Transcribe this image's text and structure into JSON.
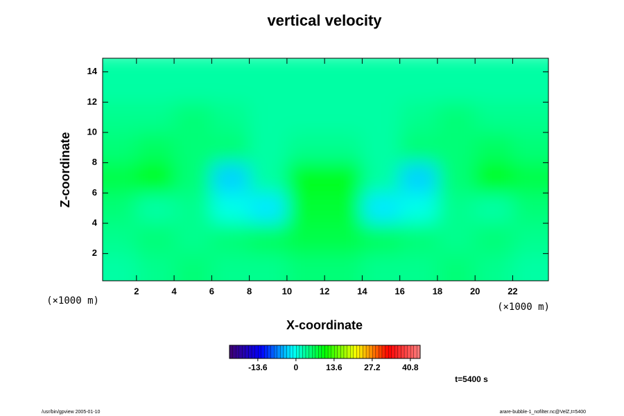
{
  "chart_data": {
    "type": "contour",
    "title": "vertical velocity",
    "x_label": "X-coordinate",
    "y_label": "Z-coordinate",
    "x_unit": "(×1000 m)",
    "y_unit": "(×1000 m)",
    "time_label": "t=5400 s",
    "footer_left": "/usr/bin/gpview 2005-01-10",
    "footer_right": "arare-bubble-1_nofilter.nc@VelZ,t=5400",
    "x": [
      1,
      3,
      5,
      7,
      9,
      11,
      13,
      15,
      17,
      19,
      21,
      23
    ],
    "z": [
      1,
      3,
      5,
      7,
      9,
      11,
      13
    ],
    "values": [
      [
        3,
        4,
        5,
        4,
        4,
        5,
        5,
        4,
        4,
        5,
        4,
        3
      ],
      [
        4,
        5,
        4,
        5,
        6,
        7,
        7,
        6,
        5,
        4,
        5,
        4
      ],
      [
        5,
        3,
        4,
        0,
        -2,
        8,
        8,
        -2,
        0,
        4,
        3,
        5
      ],
      [
        7,
        9,
        5,
        -3,
        3,
        9,
        9,
        3,
        -3,
        5,
        9,
        7
      ],
      [
        5,
        6,
        5,
        5,
        3,
        4,
        4,
        3,
        5,
        5,
        6,
        5
      ],
      [
        4,
        4,
        5,
        4,
        3,
        3,
        3,
        3,
        4,
        5,
        4,
        4
      ],
      [
        3,
        3,
        3,
        3,
        3,
        3,
        3,
        3,
        3,
        3,
        3,
        3
      ]
    ],
    "xlim": [
      0.2,
      23.9
    ],
    "ylim": [
      0.2,
      14.9
    ],
    "xticks": [
      2,
      4,
      6,
      8,
      10,
      12,
      14,
      16,
      18,
      20,
      22
    ],
    "yticks": [
      2,
      4,
      6,
      8,
      10,
      12,
      14
    ],
    "clim": [
      -23.7,
      44.3
    ],
    "cticks": [
      -13.6,
      0,
      13.6,
      27.2,
      40.8
    ],
    "colormap": [
      "#400070",
      "#0000ff",
      "#00ffff",
      "#00ff00",
      "#ffff00",
      "#ff0000",
      "#ff8080"
    ]
  }
}
